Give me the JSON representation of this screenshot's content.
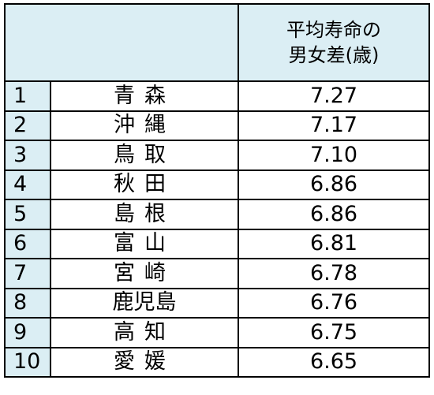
{
  "table": {
    "header": {
      "rank": "",
      "prefecture": "",
      "difference": "平均寿命の\n男女差(歳)"
    },
    "rows": [
      {
        "rank": "1",
        "prefecture": "青森",
        "difference": "7.27"
      },
      {
        "rank": "2",
        "prefecture": "沖縄",
        "difference": "7.17"
      },
      {
        "rank": "3",
        "prefecture": "鳥取",
        "difference": "7.10"
      },
      {
        "rank": "4",
        "prefecture": "秋田",
        "difference": "6.86"
      },
      {
        "rank": "5",
        "prefecture": "島根",
        "difference": "6.86"
      },
      {
        "rank": "6",
        "prefecture": "富山",
        "difference": "6.81"
      },
      {
        "rank": "7",
        "prefecture": "宮崎",
        "difference": "6.78"
      },
      {
        "rank": "8",
        "prefecture": "鹿児島",
        "difference": "6.76"
      },
      {
        "rank": "9",
        "prefecture": "高知",
        "difference": "6.75"
      },
      {
        "rank": "10",
        "prefecture": "愛媛",
        "difference": "6.65"
      }
    ]
  },
  "colors": {
    "header_background": "#dbeef4",
    "border": "#000000"
  }
}
